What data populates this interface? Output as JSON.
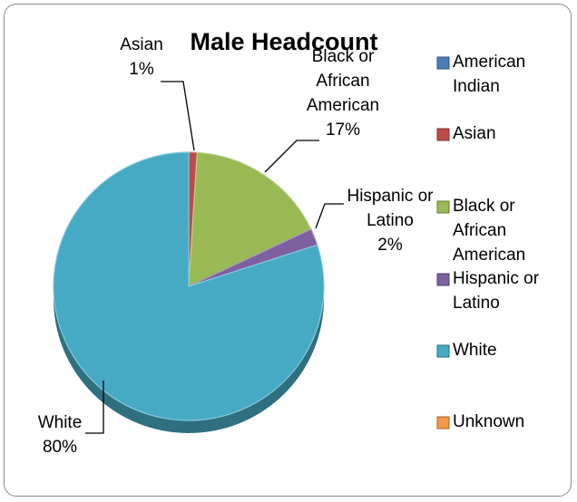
{
  "chart_data": {
    "type": "pie",
    "title": "Male Headcount",
    "categories": [
      "American Indian",
      "Asian",
      "Black or African American",
      "Hispanic or Latino",
      "White",
      "Unknown"
    ],
    "values": [
      0,
      1,
      17,
      2,
      80,
      0
    ],
    "value_unit": "%",
    "colors": [
      "#4a7ebb",
      "#be4b48",
      "#98b954",
      "#7d60a0",
      "#46aac5",
      "#f79646"
    ],
    "data_labels": [
      {
        "category": "Asian",
        "lines": [
          "Asian",
          "1%"
        ]
      },
      {
        "category": "Black or African American",
        "lines": [
          "Black or",
          "African",
          "American",
          "17%"
        ]
      },
      {
        "category": "Hispanic or Latino",
        "lines": [
          "Hispanic or",
          "Latino",
          "2%"
        ]
      },
      {
        "category": "White",
        "lines": [
          "White",
          "80%"
        ]
      }
    ],
    "legend": {
      "position": "right",
      "entries": [
        {
          "lines": [
            "American",
            "Indian"
          ]
        },
        {
          "lines": [
            "Asian"
          ]
        },
        {
          "lines": [
            "Black or",
            "African",
            "American"
          ]
        },
        {
          "lines": [
            "Hispanic or",
            "Latino"
          ]
        },
        {
          "lines": [
            "White"
          ]
        },
        {
          "lines": [
            "Unknown"
          ]
        }
      ]
    }
  }
}
